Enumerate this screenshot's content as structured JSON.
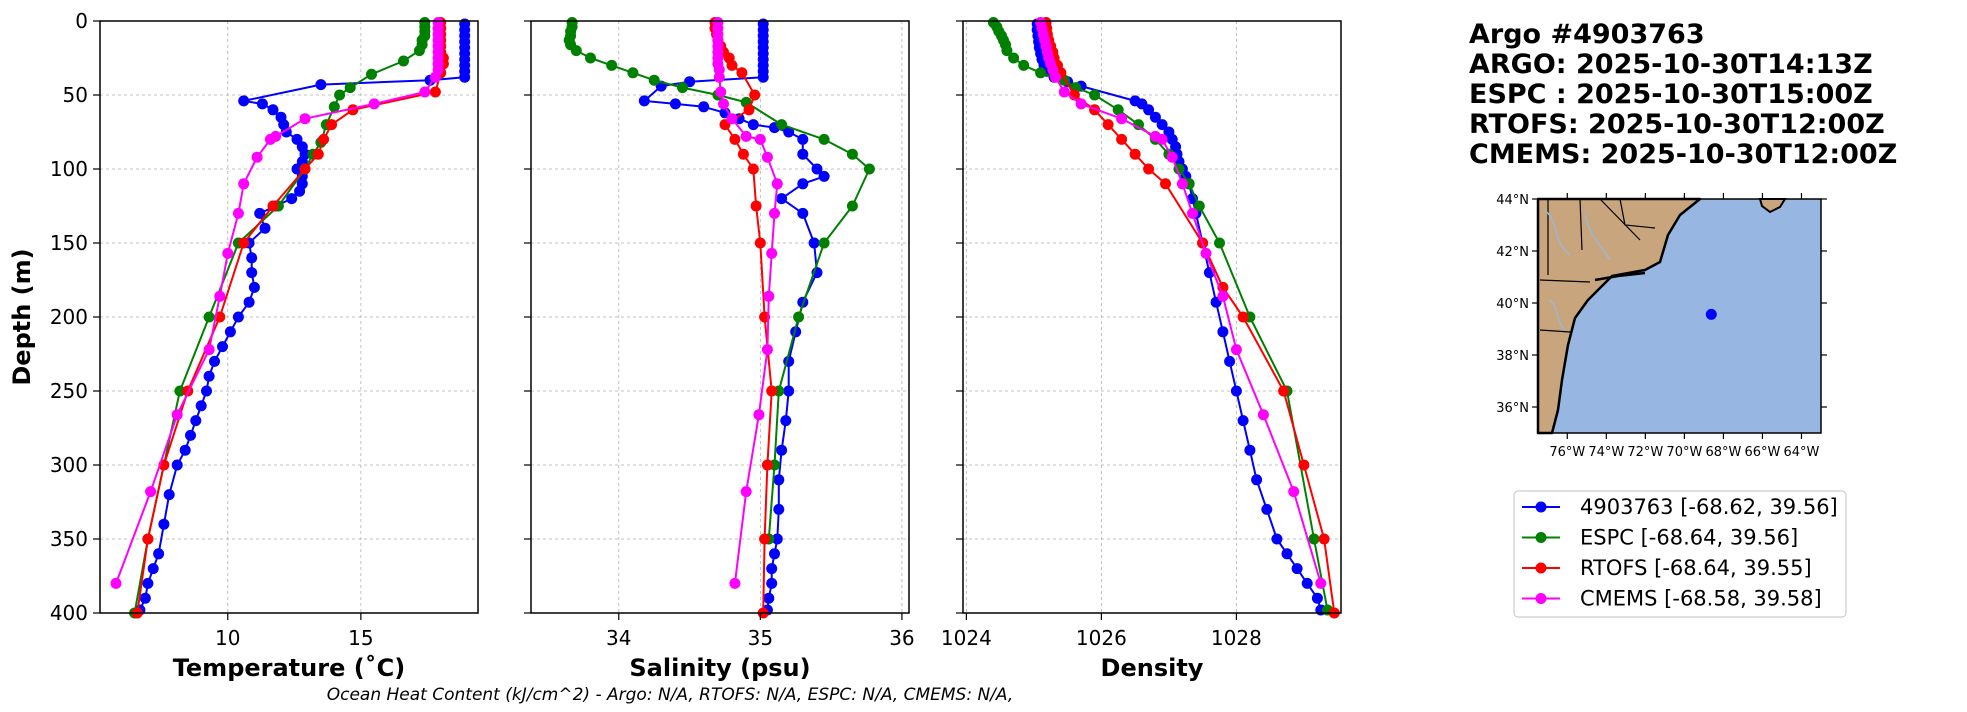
{
  "colors": {
    "argo": "#0000ff",
    "espc": "#008000",
    "rtofs": "#ff0000",
    "cmems": "#ff00ff",
    "ocean": "#97b6e1",
    "land": "#c8a57c",
    "grid": "#b0b0b0"
  },
  "header": {
    "lines": [
      "Argo #4903763",
      "ARGO: 2025-10-30T14:13Z",
      "ESPC : 2025-10-30T15:00Z",
      "RTOFS: 2025-10-30T12:00Z",
      "CMEMS: 2025-10-30T12:00Z"
    ]
  },
  "footnote": "Ocean Heat Content (kJ/cm^2) - Argo: N/A,  RTOFS: N/A,  ESPC: N/A,  CMEMS: N/A,",
  "legend": {
    "entries": [
      {
        "key": "argo",
        "label": "4903763 [-68.62, 39.56]"
      },
      {
        "key": "espc",
        "label": "ESPC [-68.64, 39.56]"
      },
      {
        "key": "rtofs",
        "label": "RTOFS [-68.64, 39.55]"
      },
      {
        "key": "cmems",
        "label": "CMEMS [-68.58, 39.58]"
      }
    ]
  },
  "map": {
    "lon_range": [
      -77.5,
      -63.0
    ],
    "lat_range": [
      35.0,
      44.0
    ],
    "lon_ticks": [
      {
        "v": -76,
        "label": "76°W"
      },
      {
        "v": -74,
        "label": "74°W"
      },
      {
        "v": -72,
        "label": "72°W"
      },
      {
        "v": -70,
        "label": "70°W"
      },
      {
        "v": -68,
        "label": "68°W"
      },
      {
        "v": -66,
        "label": "66°W"
      },
      {
        "v": -64,
        "label": "64°W"
      }
    ],
    "lat_ticks": [
      {
        "v": 44,
        "label": "44°N"
      },
      {
        "v": 42,
        "label": "42°N"
      },
      {
        "v": 40,
        "label": "40°N"
      },
      {
        "v": 38,
        "label": "38°N"
      },
      {
        "v": 36,
        "label": "36°N"
      }
    ],
    "float_position": {
      "lon": -68.62,
      "lat": 39.56
    }
  },
  "chart_data": [
    {
      "type": "line",
      "id": "temperature",
      "xlabel": "Temperature (˚C)",
      "ylabel": "Depth (m)",
      "xlim": [
        5.2,
        19.4
      ],
      "ylim": [
        400,
        0
      ],
      "xticks": [
        10,
        15
      ],
      "yticks": [
        0,
        50,
        100,
        150,
        200,
        250,
        300,
        350,
        400
      ],
      "series": [
        {
          "name": "argo",
          "x": [
            18.9,
            18.9,
            18.9,
            18.9,
            18.9,
            18.9,
            18.9,
            18.9,
            18.9,
            18.9,
            17.6,
            13.5,
            10.6,
            11.3,
            11.7,
            12.0,
            12.1,
            12.2,
            12.6,
            12.8,
            12.9,
            12.8,
            12.6,
            12.8,
            12.8,
            12.7,
            12.4,
            11.8,
            11.2,
            11.4,
            10.8,
            10.9,
            10.9,
            11.0,
            10.8,
            10.4,
            10.1,
            9.8,
            9.5,
            9.3,
            9.2,
            9.0,
            8.8,
            8.6,
            8.4,
            8.1,
            7.8,
            7.6,
            7.4,
            7.2,
            7.0,
            6.9,
            6.7
          ],
          "y": [
            2,
            6,
            10,
            14,
            18,
            22,
            26,
            30,
            34,
            38,
            40,
            43,
            54,
            56,
            60,
            65,
            70,
            75,
            80,
            85,
            90,
            95,
            100,
            105,
            110,
            115,
            120,
            125,
            130,
            140,
            150,
            160,
            170,
            180,
            190,
            200,
            210,
            220,
            230,
            240,
            250,
            260,
            270,
            280,
            290,
            300,
            320,
            340,
            360,
            370,
            380,
            390,
            398
          ]
        },
        {
          "name": "espc",
          "x": [
            17.4,
            17.4,
            17.4,
            17.4,
            17.3,
            17.3,
            17.2,
            16.6,
            15.4,
            14.6,
            14.2,
            14.0,
            13.7,
            13.5,
            13.2,
            12.9,
            11.9,
            10.4,
            9.3,
            8.2,
            7.0,
            6.5
          ],
          "y": [
            1,
            4,
            7,
            10,
            13,
            16,
            20,
            27,
            36,
            45,
            50,
            58,
            70,
            82,
            90,
            100,
            125,
            150,
            200,
            250,
            350,
            400
          ]
        },
        {
          "name": "rtofs",
          "x": [
            18.0,
            18.0,
            18.0,
            18.0,
            18.0,
            18.0,
            18.1,
            18.1,
            18.0,
            17.8,
            14.7,
            13.9,
            13.6,
            13.4,
            12.9,
            11.7,
            10.6,
            9.7,
            8.5,
            7.6,
            7.0,
            6.6
          ],
          "y": [
            1,
            5,
            9,
            13,
            17,
            21,
            25,
            29,
            35,
            48,
            60,
            70,
            80,
            90,
            100,
            125,
            150,
            200,
            250,
            300,
            350,
            400
          ]
        },
        {
          "name": "cmems",
          "x": [
            17.9,
            17.9,
            17.9,
            17.9,
            17.9,
            17.9,
            17.9,
            17.9,
            17.9,
            17.8,
            17.4,
            15.5,
            12.9,
            11.8,
            11.6,
            11.1,
            10.6,
            10.4,
            10.0,
            9.7,
            9.3,
            8.1,
            7.1,
            5.8
          ],
          "y": [
            1,
            5,
            9,
            13,
            17,
            21,
            25,
            29,
            33,
            38,
            48,
            56,
            66,
            78,
            80,
            92,
            110,
            130,
            157,
            186,
            222,
            266,
            318,
            380
          ]
        }
      ]
    },
    {
      "type": "line",
      "id": "salinity",
      "xlabel": "Salinity (psu)",
      "ylabel": "",
      "xlim": [
        33.38,
        36.05
      ],
      "ylim": [
        400,
        0
      ],
      "xticks": [
        34,
        35,
        36
      ],
      "yticks": [
        0,
        50,
        100,
        150,
        200,
        250,
        300,
        350,
        400
      ],
      "series": [
        {
          "name": "argo",
          "x": [
            35.02,
            35.02,
            35.02,
            35.02,
            35.02,
            35.02,
            35.02,
            35.02,
            35.02,
            35.02,
            34.5,
            34.3,
            34.18,
            34.4,
            34.6,
            34.75,
            34.85,
            34.95,
            35.1,
            35.2,
            35.3,
            35.3,
            35.4,
            35.45,
            35.3,
            35.15,
            35.3,
            35.38,
            35.4,
            35.3,
            35.25,
            35.2,
            35.2,
            35.18,
            35.15,
            35.13,
            35.13,
            35.12,
            35.1,
            35.08,
            35.08,
            35.06,
            35.05
          ],
          "y": [
            2,
            6,
            10,
            14,
            18,
            22,
            26,
            30,
            34,
            38,
            41,
            44,
            54,
            56,
            58,
            62,
            66,
            70,
            72,
            75,
            80,
            90,
            100,
            105,
            110,
            120,
            130,
            150,
            170,
            190,
            210,
            230,
            250,
            270,
            290,
            310,
            330,
            350,
            360,
            370,
            380,
            390,
            398
          ]
        },
        {
          "name": "espc",
          "x": [
            33.67,
            33.67,
            33.66,
            33.66,
            33.65,
            33.66,
            33.7,
            33.8,
            33.95,
            34.1,
            34.25,
            34.45,
            34.7,
            34.9,
            35.15,
            35.45,
            35.65,
            35.77,
            35.65,
            35.45,
            35.27,
            35.13,
            35.1,
            35.06
          ],
          "y": [
            1,
            4,
            7,
            10,
            13,
            16,
            20,
            25,
            30,
            35,
            40,
            45,
            50,
            55,
            70,
            80,
            90,
            100,
            125,
            150,
            200,
            250,
            300,
            350
          ]
        },
        {
          "name": "rtofs",
          "x": [
            34.68,
            34.68,
            34.69,
            34.7,
            34.72,
            34.74,
            34.78,
            34.8,
            34.87,
            34.96,
            34.92,
            34.75,
            34.82,
            34.88,
            34.95,
            34.97,
            35.0,
            35.03,
            35.08,
            35.05,
            35.03,
            35.02
          ],
          "y": [
            1,
            5,
            9,
            13,
            17,
            21,
            25,
            30,
            35,
            50,
            60,
            70,
            80,
            90,
            100,
            125,
            150,
            200,
            250,
            300,
            350,
            400
          ]
        },
        {
          "name": "cmems",
          "x": [
            34.7,
            34.7,
            34.7,
            34.7,
            34.7,
            34.7,
            34.7,
            34.7,
            34.71,
            34.71,
            34.72,
            34.74,
            34.8,
            34.9,
            35.0,
            35.05,
            35.12,
            35.1,
            35.08,
            35.06,
            35.05,
            34.99,
            34.9,
            34.82
          ],
          "y": [
            1,
            5,
            9,
            13,
            17,
            21,
            25,
            29,
            33,
            38,
            48,
            56,
            66,
            78,
            80,
            92,
            110,
            130,
            157,
            186,
            222,
            266,
            318,
            380
          ]
        }
      ]
    },
    {
      "type": "line",
      "id": "density",
      "xlabel": "Density",
      "ylabel": "",
      "xlim": [
        1023.95,
        1029.55
      ],
      "ylim": [
        400,
        0
      ],
      "xticks": [
        1024,
        1026,
        1028
      ],
      "yticks": [
        0,
        50,
        100,
        150,
        200,
        250,
        300,
        350,
        400
      ],
      "series": [
        {
          "name": "argo",
          "x": [
            1025.05,
            1025.05,
            1025.06,
            1025.07,
            1025.08,
            1025.1,
            1025.12,
            1025.15,
            1025.2,
            1025.3,
            1025.5,
            1025.7,
            1026.5,
            1026.6,
            1026.7,
            1026.8,
            1026.9,
            1027.0,
            1027.05,
            1027.1,
            1027.12,
            1027.15,
            1027.2,
            1027.25,
            1027.3,
            1027.35,
            1027.4,
            1027.5,
            1027.6,
            1027.7,
            1027.8,
            1027.9,
            1028.0,
            1028.1,
            1028.2,
            1028.3,
            1028.45,
            1028.6,
            1028.75,
            1028.9,
            1029.05,
            1029.2,
            1029.25
          ],
          "y": [
            2,
            6,
            10,
            14,
            18,
            22,
            26,
            30,
            34,
            38,
            41,
            44,
            54,
            56,
            60,
            65,
            70,
            75,
            80,
            85,
            90,
            95,
            100,
            105,
            110,
            120,
            130,
            150,
            170,
            190,
            210,
            230,
            250,
            270,
            290,
            310,
            330,
            350,
            360,
            370,
            380,
            390,
            398
          ]
        },
        {
          "name": "espc",
          "x": [
            1024.4,
            1024.45,
            1024.48,
            1024.52,
            1024.55,
            1024.58,
            1024.6,
            1024.7,
            1024.85,
            1025.1,
            1025.45,
            1025.62,
            1025.9,
            1026.25,
            1026.55,
            1026.8,
            1027.0,
            1027.15,
            1027.3,
            1027.45,
            1027.75,
            1028.2,
            1028.75,
            1029.15,
            1029.35
          ],
          "y": [
            1,
            4,
            7,
            10,
            13,
            16,
            20,
            25,
            30,
            35,
            40,
            45,
            50,
            60,
            70,
            80,
            90,
            100,
            110,
            125,
            150,
            200,
            250,
            350,
            398
          ]
        },
        {
          "name": "rtofs",
          "x": [
            1025.18,
            1025.19,
            1025.2,
            1025.22,
            1025.25,
            1025.28,
            1025.3,
            1025.35,
            1025.4,
            1025.6,
            1025.9,
            1026.1,
            1026.3,
            1026.5,
            1026.7,
            1026.95,
            1027.5,
            1027.8,
            1028.1,
            1028.7,
            1029.0,
            1029.3,
            1029.45
          ],
          "y": [
            1,
            5,
            9,
            13,
            17,
            21,
            25,
            30,
            35,
            50,
            60,
            70,
            80,
            90,
            100,
            110,
            150,
            180,
            200,
            250,
            300,
            350,
            400
          ]
        },
        {
          "name": "cmems",
          "x": [
            1025.1,
            1025.12,
            1025.14,
            1025.16,
            1025.18,
            1025.2,
            1025.22,
            1025.25,
            1025.28,
            1025.32,
            1025.45,
            1025.7,
            1026.3,
            1026.8,
            1026.9,
            1027.05,
            1027.2,
            1027.35,
            1027.55,
            1027.8,
            1028.0,
            1028.4,
            1028.85,
            1029.25
          ],
          "y": [
            1,
            5,
            9,
            13,
            17,
            21,
            25,
            29,
            33,
            38,
            48,
            56,
            66,
            78,
            80,
            92,
            110,
            130,
            157,
            186,
            222,
            266,
            318,
            380
          ]
        }
      ]
    }
  ]
}
